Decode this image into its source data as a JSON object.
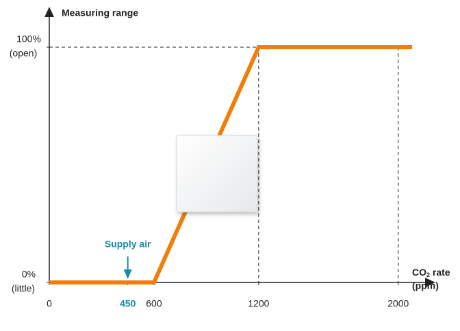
{
  "chart_data": {
    "type": "line",
    "ylabel": "Measuring range",
    "xlabel": {
      "main": "CO",
      "sub": "2",
      "rest": " rate",
      "unit": "(ppm)"
    },
    "x": [
      0,
      600,
      1200,
      2080
    ],
    "series": [
      {
        "name": "Measuring range",
        "color": "#f07f09",
        "values": [
          0,
          0,
          100,
          100
        ]
      }
    ],
    "xlim": [
      0,
      2150
    ],
    "ylim": [
      0,
      100
    ],
    "xticks": [
      0,
      450,
      600,
      1200,
      2000
    ],
    "yticks": [
      {
        "value": 0,
        "label": "0%"
      },
      {
        "value": 100,
        "label": "100%"
      }
    ],
    "ytick_sublabels": [
      "(little)",
      "(open)"
    ],
    "reference_lines": {
      "x": [
        1200,
        2000
      ],
      "y": [
        100
      ]
    },
    "annotation": {
      "text": "Supply air",
      "x": 450,
      "color": "#1a8aa6"
    }
  }
}
